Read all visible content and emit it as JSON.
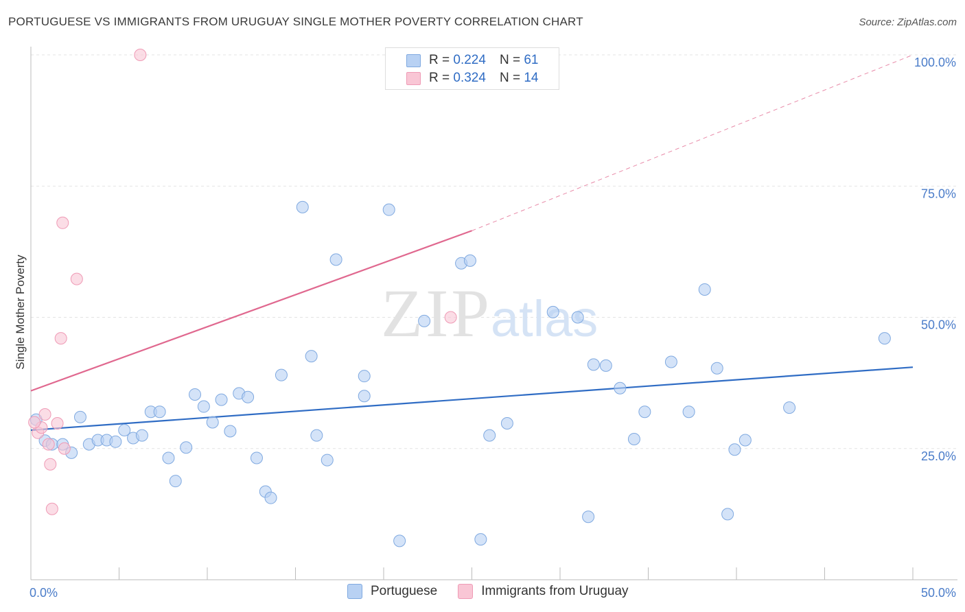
{
  "title": "PORTUGUESE VS IMMIGRANTS FROM URUGUAY SINGLE MOTHER POVERTY CORRELATION CHART",
  "source": "Source: ZipAtlas.com",
  "watermark": {
    "zip": "ZIP",
    "atlas": "atlas"
  },
  "legend": {
    "rows": [
      {
        "r_label": "R =",
        "r_value": "0.224",
        "n_label": "N =",
        "n_value": "61",
        "color": "#b8d1f3",
        "border": "#7fa9e0"
      },
      {
        "r_label": "R =",
        "r_value": "0.324",
        "n_label": "N =",
        "n_value": "14",
        "color": "#f9c6d5",
        "border": "#ef9ab5"
      }
    ]
  },
  "bottom_legend": {
    "portuguese": "Portuguese",
    "uruguay": "Immigrants from Uruguay"
  },
  "chart_data": {
    "type": "scatter",
    "title": "PORTUGUESE VS IMMIGRANTS FROM URUGUAY SINGLE MOTHER POVERTY CORRELATION CHART",
    "xlabel": "",
    "ylabel": "Single Mother Poverty",
    "xlim": [
      0,
      50
    ],
    "ylim": [
      0,
      100
    ],
    "x_tick_labels": {
      "left": "0.0%",
      "right": "50.0%"
    },
    "y_tick_labels": [
      "25.0%",
      "50.0%",
      "75.0%",
      "100.0%"
    ],
    "y_ticks": [
      25,
      50,
      75,
      100
    ],
    "grid": "horizontal dashed",
    "legend_position": "top-center",
    "series": [
      {
        "name": "Portuguese",
        "color": "#7fa9e0",
        "fill": "#b8d1f3",
        "points": [
          [
            0.3,
            30.5
          ],
          [
            0.8,
            26.5
          ],
          [
            1.2,
            25.8
          ],
          [
            1.8,
            25.8
          ],
          [
            2.3,
            24.2
          ],
          [
            2.8,
            31.0
          ],
          [
            3.3,
            25.8
          ],
          [
            3.8,
            26.6
          ],
          [
            4.3,
            26.6
          ],
          [
            4.8,
            26.3
          ],
          [
            5.3,
            28.5
          ],
          [
            5.8,
            27.0
          ],
          [
            6.3,
            27.5
          ],
          [
            6.8,
            32.0
          ],
          [
            7.3,
            32.0
          ],
          [
            7.8,
            23.2
          ],
          [
            8.2,
            18.8
          ],
          [
            8.8,
            25.2
          ],
          [
            9.3,
            35.3
          ],
          [
            9.8,
            33.0
          ],
          [
            10.3,
            30.0
          ],
          [
            10.8,
            34.3
          ],
          [
            11.3,
            28.3
          ],
          [
            11.8,
            35.5
          ],
          [
            12.3,
            34.8
          ],
          [
            12.8,
            23.2
          ],
          [
            13.3,
            16.8
          ],
          [
            13.6,
            15.6
          ],
          [
            14.2,
            39.0
          ],
          [
            15.4,
            71.0
          ],
          [
            15.9,
            42.6
          ],
          [
            16.2,
            27.5
          ],
          [
            16.8,
            22.8
          ],
          [
            17.3,
            61.0
          ],
          [
            18.9,
            38.8
          ],
          [
            18.9,
            35.0
          ],
          [
            20.3,
            70.5
          ],
          [
            20.9,
            7.4
          ],
          [
            22.3,
            49.3
          ],
          [
            24.4,
            60.3
          ],
          [
            24.9,
            60.8
          ],
          [
            25.5,
            7.7
          ],
          [
            26.0,
            27.5
          ],
          [
            27.0,
            29.8
          ],
          [
            29.6,
            51.0
          ],
          [
            31.0,
            50.0
          ],
          [
            31.6,
            12.0
          ],
          [
            31.9,
            41.0
          ],
          [
            32.6,
            40.8
          ],
          [
            33.4,
            36.5
          ],
          [
            34.2,
            26.8
          ],
          [
            34.8,
            32.0
          ],
          [
            38.2,
            55.3
          ],
          [
            36.3,
            41.5
          ],
          [
            37.3,
            32.0
          ],
          [
            38.9,
            40.3
          ],
          [
            39.5,
            12.5
          ],
          [
            39.9,
            24.8
          ],
          [
            40.5,
            26.6
          ],
          [
            43.0,
            32.8
          ],
          [
            48.4,
            46.0
          ]
        ],
        "trend": [
          [
            0,
            28.5
          ],
          [
            50,
            40.5
          ]
        ]
      },
      {
        "name": "Immigrants from Uruguay",
        "color": "#ef9ab5",
        "fill": "#f9c6d5",
        "points": [
          [
            0.4,
            28.0
          ],
          [
            0.6,
            29.0
          ],
          [
            0.8,
            31.5
          ],
          [
            1.0,
            25.8
          ],
          [
            1.1,
            22.0
          ],
          [
            1.2,
            13.5
          ],
          [
            1.5,
            29.8
          ],
          [
            1.7,
            46.0
          ],
          [
            1.8,
            68.0
          ],
          [
            1.9,
            25.0
          ],
          [
            2.6,
            57.3
          ],
          [
            6.2,
            100.0
          ],
          [
            23.8,
            50.0
          ],
          [
            0.2,
            30.0
          ]
        ],
        "trend": [
          [
            0,
            36.0
          ],
          [
            25,
            66.5
          ]
        ],
        "trend_extension": [
          [
            25,
            66.5
          ],
          [
            50,
            100.0
          ]
        ]
      }
    ]
  }
}
